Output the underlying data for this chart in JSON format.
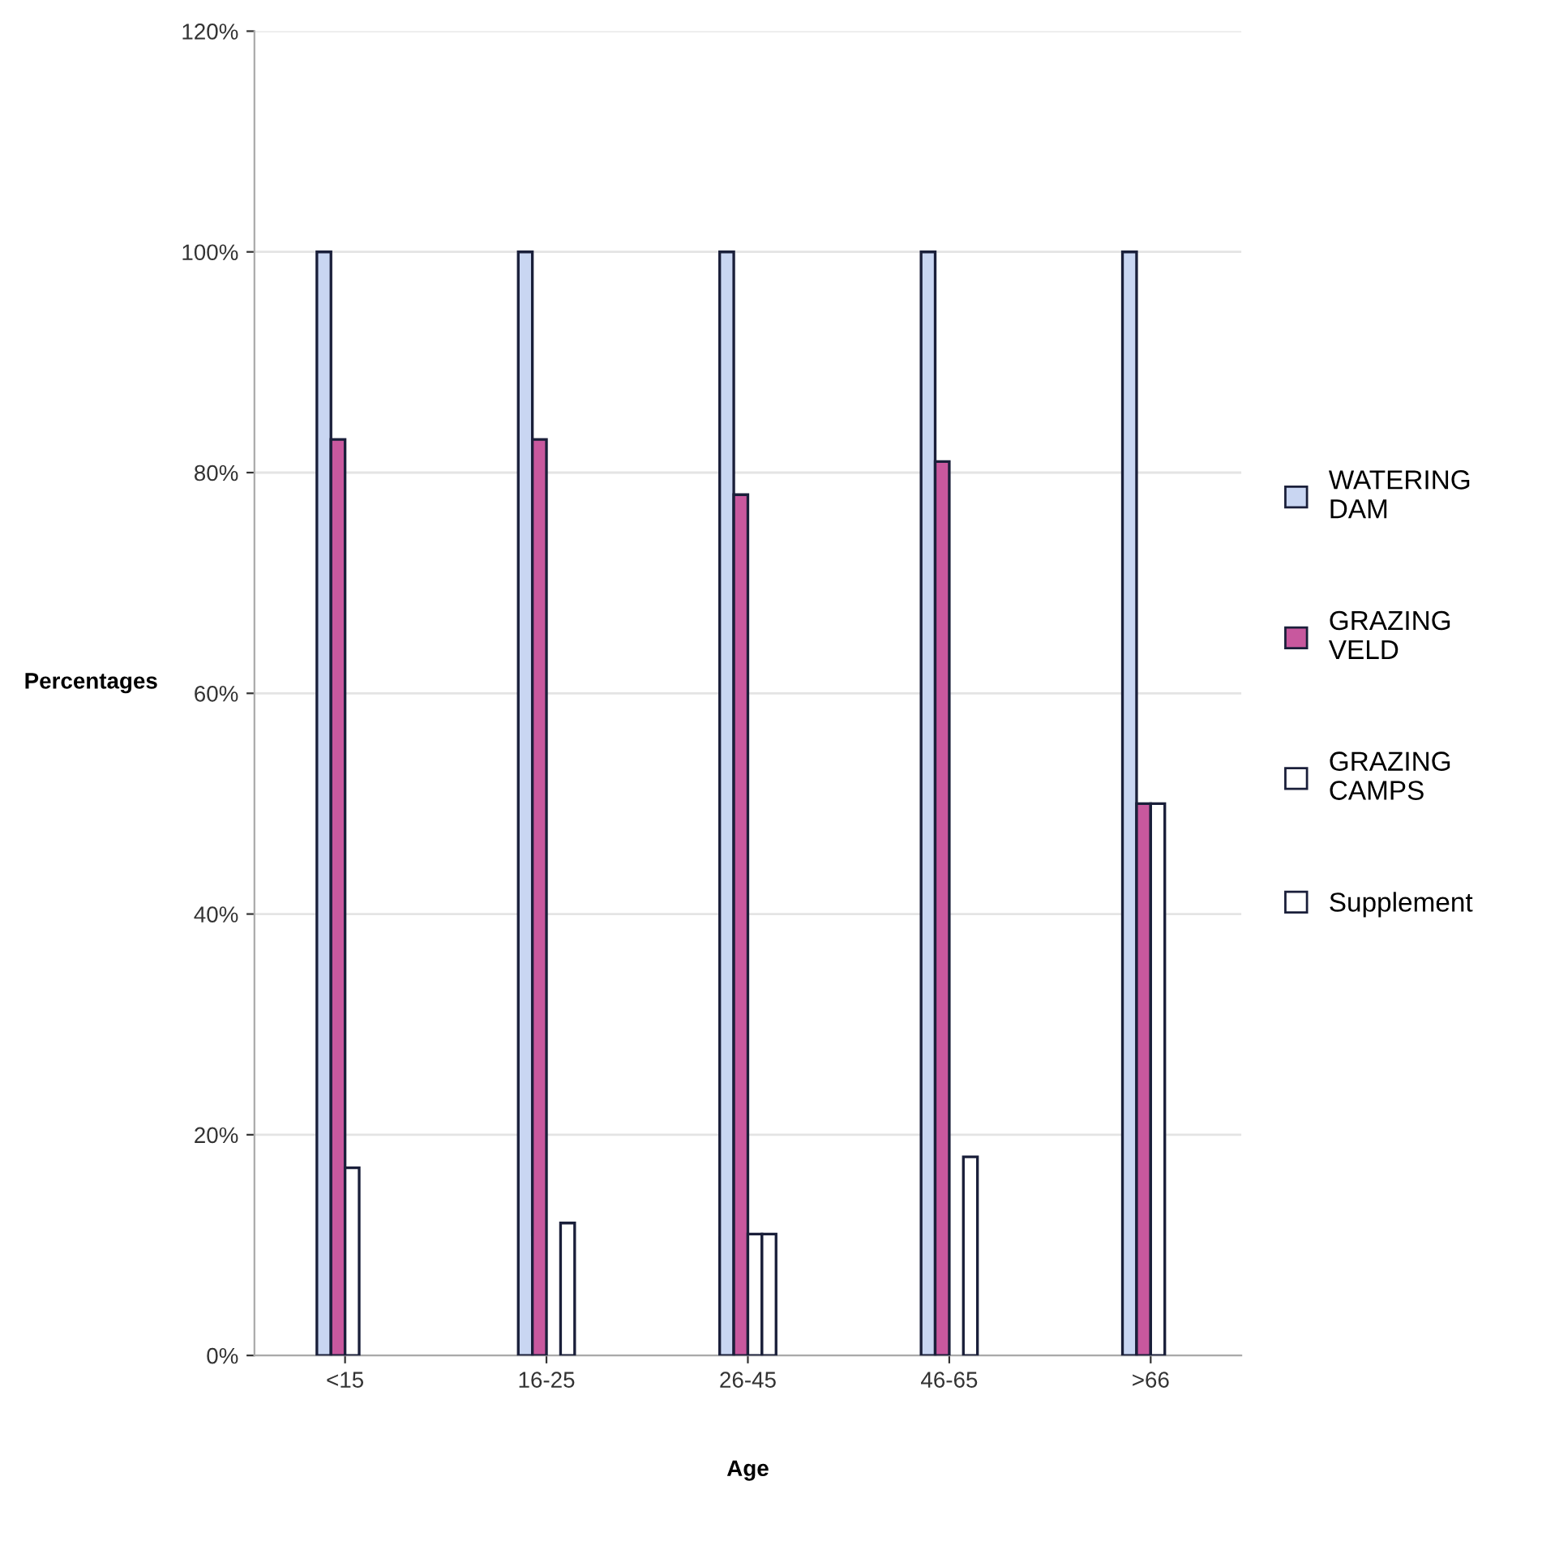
{
  "chart_data": {
    "type": "bar",
    "xlabel": "Age",
    "ylabel": "Percentages",
    "categories": [
      "<15",
      "16-25",
      "26-45",
      "46-65",
      ">66"
    ],
    "series": [
      {
        "name": "WATERING DAM",
        "color": "#c9d6f2",
        "values": [
          100,
          100,
          100,
          100,
          100
        ]
      },
      {
        "name": "GRAZING VELD",
        "color": "#c8589e",
        "values": [
          83,
          83,
          78,
          81,
          50
        ]
      },
      {
        "name": "GRAZING CAMPS",
        "color": "#ffffff",
        "values": [
          17,
          null,
          11,
          null,
          50
        ]
      },
      {
        "name": "Supplement",
        "color": "#ffffff",
        "values": [
          null,
          12,
          11,
          18,
          null
        ]
      }
    ],
    "ylim": [
      0,
      120
    ],
    "yticks": [
      {
        "value": 0,
        "label": "0%"
      },
      {
        "value": 20,
        "label": "20%"
      },
      {
        "value": 40,
        "label": "40%"
      },
      {
        "value": 60,
        "label": "60%"
      },
      {
        "value": 80,
        "label": "80%"
      },
      {
        "value": 100,
        "label": "100%"
      },
      {
        "value": 120,
        "label": "120%"
      }
    ],
    "grid": "y",
    "legend": "right"
  }
}
